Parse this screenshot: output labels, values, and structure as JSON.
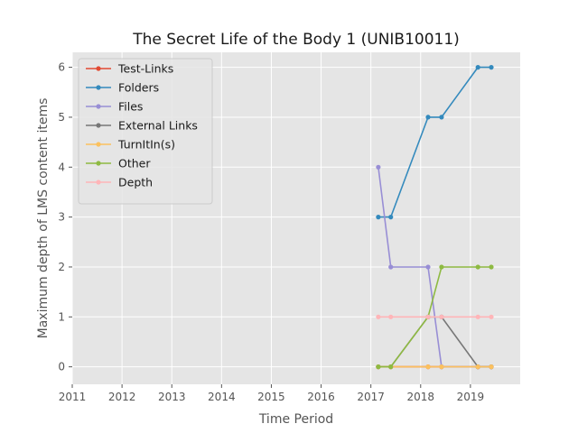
{
  "chart_data": {
    "type": "line",
    "title": "The Secret Life of the Body 1 (UNIB10011)",
    "xlabel": "Time Period",
    "ylabel": "Maximum depth of LMS content items",
    "xlim": [
      2011,
      2020
    ],
    "ylim": [
      -0.35,
      6.3
    ],
    "x_ticks": [
      2011,
      2012,
      2013,
      2014,
      2015,
      2016,
      2017,
      2018,
      2019
    ],
    "y_ticks": [
      0,
      1,
      2,
      3,
      4,
      5,
      6
    ],
    "grid": true,
    "legend_position": "top-left",
    "x": [
      2017.15,
      2017.4,
      2018.15,
      2018.42,
      2019.15,
      2019.42
    ],
    "series": [
      {
        "name": "Test-Links",
        "color": "#e24a33",
        "values": [
          0,
          0,
          0,
          0,
          0,
          0
        ]
      },
      {
        "name": "Folders",
        "color": "#348abd",
        "values": [
          3,
          3,
          5,
          5,
          6,
          6
        ]
      },
      {
        "name": "Files",
        "color": "#988ed5",
        "values": [
          4,
          2,
          2,
          0,
          0,
          0
        ]
      },
      {
        "name": "External Links",
        "color": "#777777",
        "values": [
          0,
          0,
          1,
          1,
          0,
          0
        ]
      },
      {
        "name": "TurnItIn(s)",
        "color": "#fbc15e",
        "values": [
          0,
          0,
          0,
          0,
          0,
          0
        ]
      },
      {
        "name": "Other",
        "color": "#8eba42",
        "values": [
          0,
          0,
          1,
          2,
          2,
          2
        ]
      },
      {
        "name": "Depth",
        "color": "#ffb5b8",
        "values": [
          1,
          1,
          1,
          1,
          1,
          1
        ]
      }
    ]
  }
}
